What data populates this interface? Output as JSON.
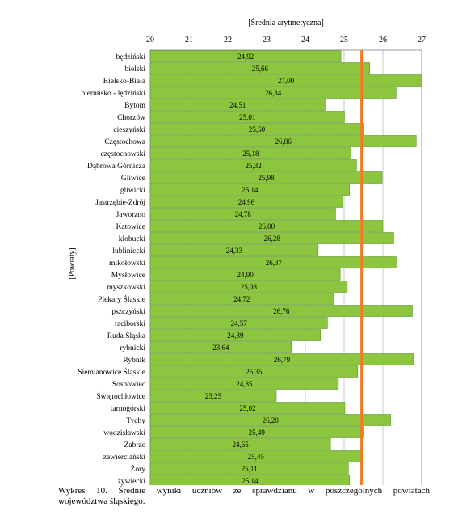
{
  "chart_data": {
    "type": "bar",
    "orientation": "horizontal",
    "title": "",
    "xlabel": "[Średnia arytmetyczna]",
    "ylabel": "[Powiaty]",
    "xlim": [
      20,
      27
    ],
    "xticks": [
      20,
      21,
      22,
      23,
      24,
      25,
      26,
      27
    ],
    "grid": true,
    "reference_line": 25.45,
    "categories": [
      "będziński",
      "bielski",
      "Bielsko-Biała",
      "bieruńsko - lędziński",
      "Bytom",
      "Chorzów",
      "cieszyński",
      "Częstochowa",
      "częstochowski",
      "Dąbrowa Górnicza",
      "Gliwice",
      "gliwicki",
      "Jastrzębie-Zdrój",
      "Jaworzno",
      "Katowice",
      "kłobucki",
      "lubliniecki",
      "mikołowski",
      "Mysłowice",
      "myszkowski",
      "Piekary Śląskie",
      "pszczyński",
      "raciborski",
      "Ruda Śląska",
      "rybnicki",
      "Rybnik",
      "Siemianowice Śląskie",
      "Sosnowiec",
      "Świętochłowice",
      "tarnogórski",
      "Tychy",
      "wodzisławski",
      "Zabrze",
      "zawierciański",
      "Żory",
      "żywiecki"
    ],
    "values": [
      24.92,
      25.66,
      27.0,
      26.34,
      24.51,
      25.01,
      25.5,
      26.86,
      25.18,
      25.32,
      25.98,
      25.14,
      24.96,
      24.78,
      26.0,
      26.28,
      24.33,
      26.37,
      24.9,
      25.08,
      24.72,
      26.76,
      24.57,
      24.39,
      23.64,
      26.79,
      25.35,
      24.85,
      23.25,
      25.02,
      26.2,
      25.49,
      24.65,
      25.45,
      25.11,
      25.14
    ],
    "value_labels": [
      "24,92",
      "25,66",
      "27,00",
      "26,34",
      "24,51",
      "25,01",
      "25,50",
      "26,86",
      "25,18",
      "25,32",
      "25,98",
      "25,14",
      "24,96",
      "24,78",
      "26,00",
      "26,28",
      "24,33",
      "26,37",
      "24,90",
      "25,08",
      "24,72",
      "26,76",
      "24,57",
      "24,39",
      "23,64",
      "26,79",
      "25,35",
      "24,85",
      "23,25",
      "25,02",
      "26,20",
      "25,49",
      "24,65",
      "25,45",
      "25,11",
      "25,14"
    ],
    "colors": {
      "bar": "#8cc63f",
      "bar_stroke": "#5e9a2e",
      "reference": "#f07c22",
      "grid": "#c8c8c8",
      "frame": "#9a9a9a"
    }
  },
  "caption": {
    "line1": "Wykres 10. Średnie wyniki uczniów ze sprawdzianu w poszczególnych powiatach",
    "line2": "województwa śląskiego."
  }
}
